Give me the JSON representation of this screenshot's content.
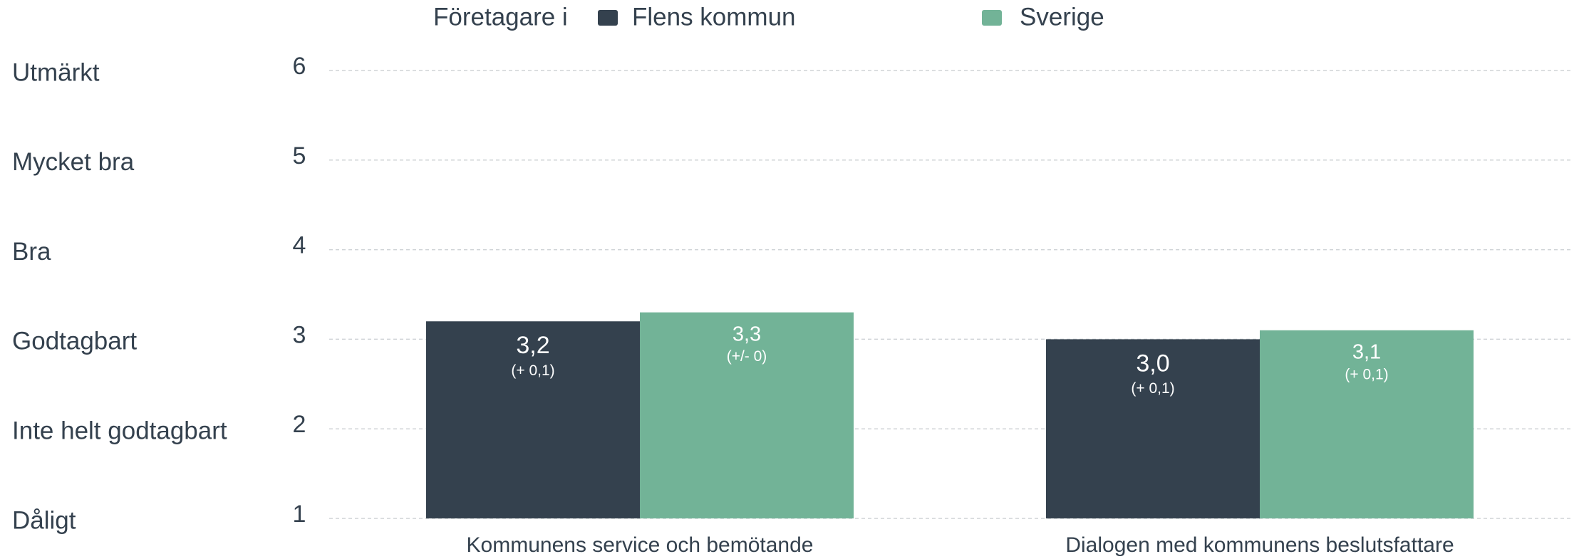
{
  "chart_data": {
    "type": "bar",
    "legend_title": "Företagare i",
    "categories": [
      "Kommunens service och bemötande",
      "Dialogen med kommunens beslutsfattare"
    ],
    "series": [
      {
        "name": "Flens kommun",
        "color": "#34414e",
        "values": [
          3.2,
          3.0
        ],
        "value_labels": [
          "3,2",
          "3,0"
        ],
        "change_labels": [
          "(+ 0,1)",
          "(+ 0,1)"
        ]
      },
      {
        "name": "Sverige",
        "color": "#72b397",
        "values": [
          3.3,
          3.1
        ],
        "value_labels": [
          "3,3",
          "3,1"
        ],
        "change_labels": [
          "(+/- 0)",
          "(+ 0,1)"
        ]
      }
    ],
    "ylim": [
      1,
      6
    ],
    "yticks": [
      1,
      2,
      3,
      4,
      5,
      6
    ],
    "ylevels": [
      "Dåligt",
      "Inte helt godtagbart",
      "Godtagbart",
      "Bra",
      "Mycket bra",
      "Utmärkt"
    ],
    "grid": true
  }
}
